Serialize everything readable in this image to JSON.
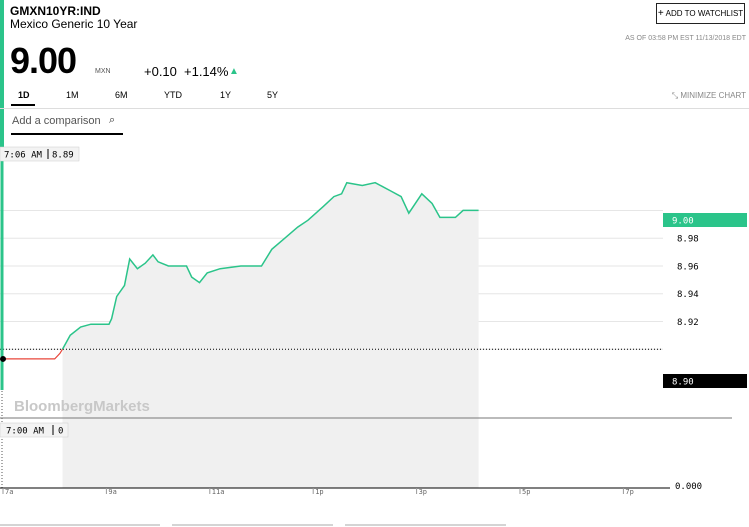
{
  "header": {
    "ticker": "GMXN10YR:IND",
    "name": "Mexico Generic 10 Year",
    "watchlist_label": "ADD TO WATCHLIST",
    "as_of": "AS OF 03:58 PM EST 11/13/2018 EDT",
    "price": "9.00",
    "currency": "MXN",
    "change": "+0.10",
    "change_pct": "+1.14%",
    "accent_color": "#2bc48a",
    "negative_color": "#e8463a"
  },
  "tabs": [
    {
      "label": "1D",
      "active": true
    },
    {
      "label": "1M"
    },
    {
      "label": "6M"
    },
    {
      "label": "YTD"
    },
    {
      "label": "1Y"
    },
    {
      "label": "5Y"
    }
  ],
  "minimize_label": "MINIMIZE CHART",
  "comparison": {
    "placeholder": "Add a comparison"
  },
  "watermark": "BloombergMarkets",
  "chart_data": {
    "type": "line",
    "x_ticks": [
      "7a",
      "9a",
      "11a",
      "1p",
      "3p",
      "5p",
      "7p"
    ],
    "x_hours": [
      7,
      9,
      11,
      13,
      15,
      17,
      19
    ],
    "price_ticks": [
      9.0,
      8.98,
      8.96,
      8.94,
      8.92,
      8.9
    ],
    "price_tick_labels": [
      "9.00",
      "8.98",
      "8.96",
      "8.94",
      "8.92",
      "8.90"
    ],
    "ylim": [
      8.8,
      9.045
    ],
    "previous_close": 8.9,
    "previous_close_label": "8.90",
    "last_price": 9.0,
    "last_price_label": "9.00",
    "hover_price": {
      "time": "7:06 AM",
      "value": "8.89"
    },
    "hover_volume": {
      "time": "7:00 AM",
      "value": "0"
    },
    "volume_axis_label": "0.000",
    "series": [
      {
        "points": [
          [
            7.0,
            8.893
          ],
          [
            8.0,
            8.893
          ],
          [
            8.1,
            8.897
          ],
          [
            8.15,
            8.9
          ],
          [
            8.3,
            8.91
          ],
          [
            8.5,
            8.916
          ],
          [
            8.7,
            8.918
          ],
          [
            8.9,
            8.918
          ],
          [
            9.05,
            8.918
          ],
          [
            9.1,
            8.922
          ],
          [
            9.2,
            8.938
          ],
          [
            9.35,
            8.946
          ],
          [
            9.45,
            8.965
          ],
          [
            9.6,
            8.958
          ],
          [
            9.75,
            8.962
          ],
          [
            9.9,
            8.968
          ],
          [
            10.0,
            8.963
          ],
          [
            10.2,
            8.96
          ],
          [
            10.55,
            8.96
          ],
          [
            10.65,
            8.952
          ],
          [
            10.8,
            8.948
          ],
          [
            10.95,
            8.955
          ],
          [
            11.2,
            8.958
          ],
          [
            11.6,
            8.96
          ],
          [
            12.0,
            8.96
          ],
          [
            12.2,
            8.972
          ],
          [
            12.45,
            8.98
          ],
          [
            12.7,
            8.988
          ],
          [
            12.9,
            8.993
          ],
          [
            13.2,
            9.003
          ],
          [
            13.4,
            9.01
          ],
          [
            13.55,
            9.012
          ],
          [
            13.65,
            9.02
          ],
          [
            13.8,
            9.019
          ],
          [
            13.95,
            9.018
          ],
          [
            14.2,
            9.02
          ],
          [
            14.5,
            9.014
          ],
          [
            14.7,
            9.01
          ],
          [
            14.85,
            8.998
          ],
          [
            15.1,
            9.012
          ],
          [
            15.3,
            9.005
          ],
          [
            15.45,
            8.995
          ],
          [
            15.75,
            8.995
          ],
          [
            15.9,
            9.0
          ],
          [
            16.2,
            9.0
          ]
        ]
      }
    ]
  }
}
